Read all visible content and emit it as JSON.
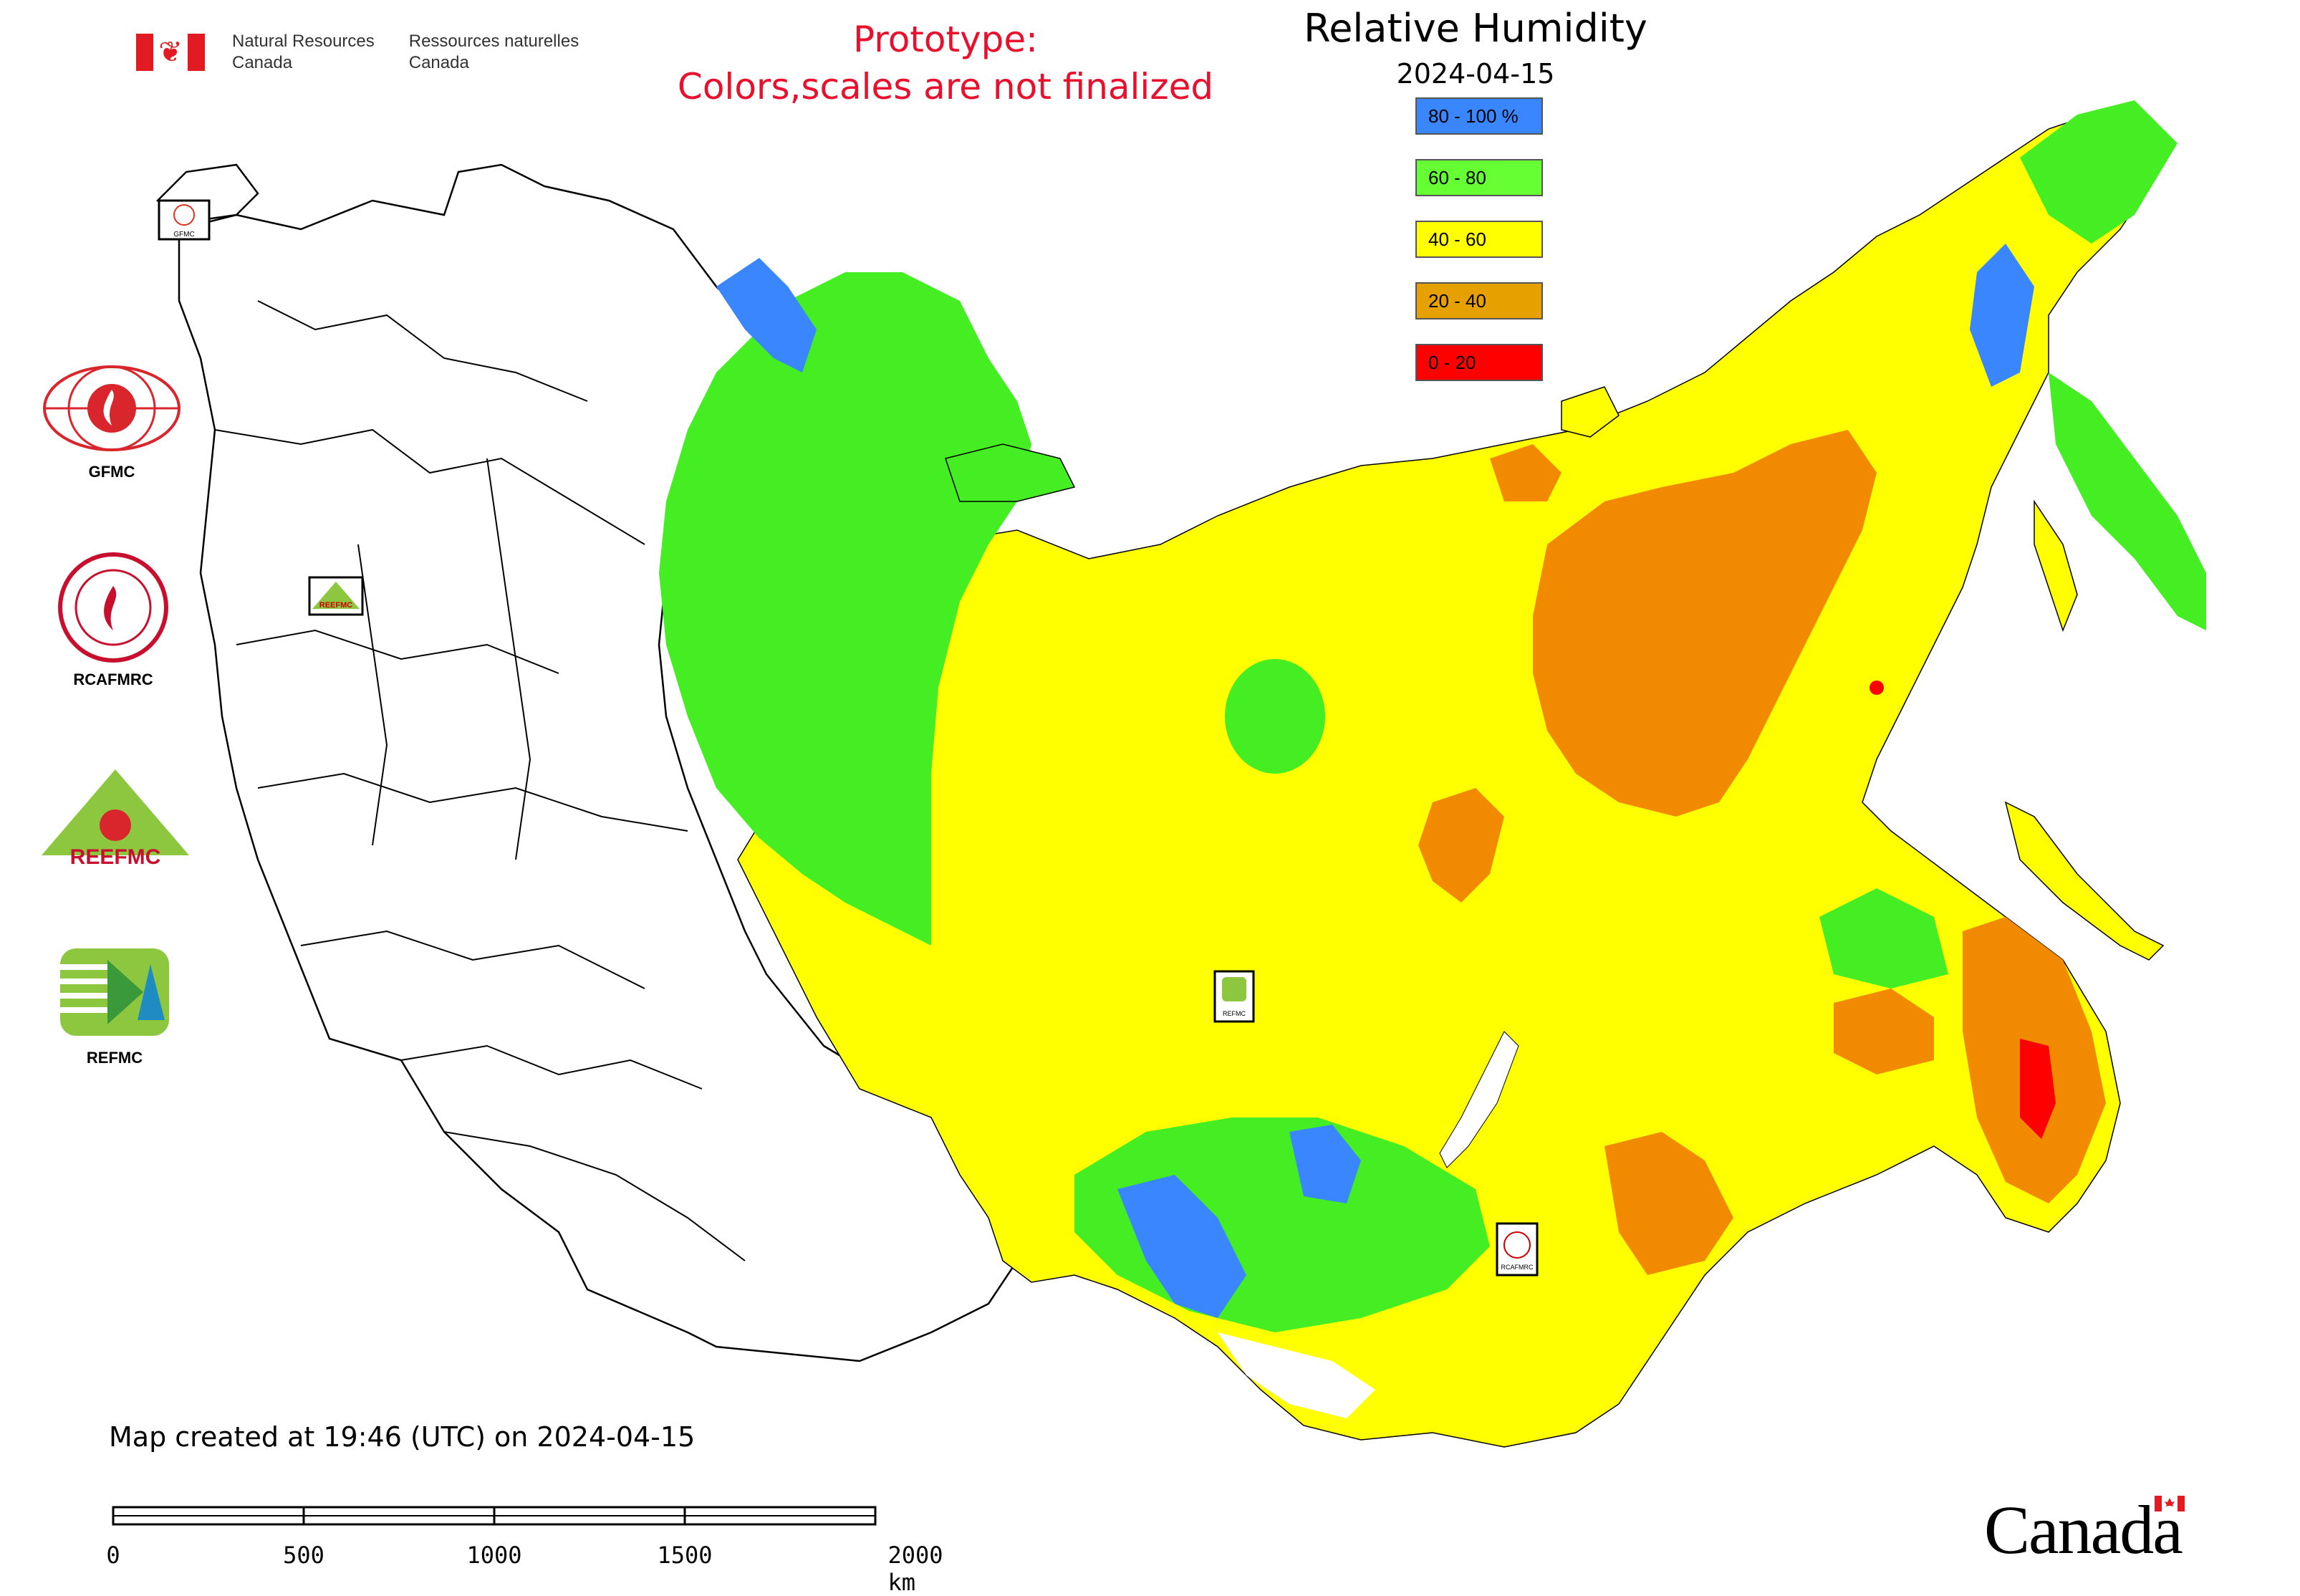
{
  "header": {
    "agency_en": [
      "Natural Resources",
      "Canada"
    ],
    "agency_fr": [
      "Ressources naturelles",
      "Canada"
    ],
    "prototype_lines": [
      "Prototype:",
      "Colors,scales are not finalized"
    ],
    "title": "Relative Humidity",
    "date": "2024-04-15"
  },
  "legend": [
    {
      "label": "80 - 100 %",
      "color": "#3a86ff"
    },
    {
      "label": "60 - 80",
      "color": "#66ff33"
    },
    {
      "label": "40 - 60",
      "color": "#ffff00"
    },
    {
      "label": "20 - 40",
      "color": "#e6a000"
    },
    {
      "label": "0 - 20",
      "color": "#ff0000"
    }
  ],
  "logos": [
    {
      "label": "GFMC",
      "icon": "gfmc-logo"
    },
    {
      "label": "RCAFMRC",
      "icon": "rcafmrc-logo"
    },
    {
      "label": "",
      "icon": "reefmc-logo",
      "wordmark": "REEFMC"
    },
    {
      "label": "REFMC",
      "icon": "refmc-logo"
    }
  ],
  "map_markers": [
    {
      "label": "GFMC",
      "icon": "gfmc-marker-icon"
    },
    {
      "label": "REEFMC",
      "icon": "reefmc-marker-icon"
    },
    {
      "label": "REFMC",
      "icon": "refmc-marker-icon"
    },
    {
      "label": "RCAFMRC",
      "icon": "rcafmrc-marker-icon"
    }
  ],
  "footer": {
    "created": "Map created at 19:46 (UTC) on 2024-04-15",
    "scale_labels": [
      "0",
      "500",
      "1000",
      "1500",
      "2000 km"
    ],
    "wordmark": "Canada"
  },
  "colors": {
    "blue": "#3a86ff",
    "green": "#44ee22",
    "yellow": "#ffff00",
    "orange": "#f28a00",
    "red": "#ff0000",
    "proto_text": "#e8102d"
  }
}
